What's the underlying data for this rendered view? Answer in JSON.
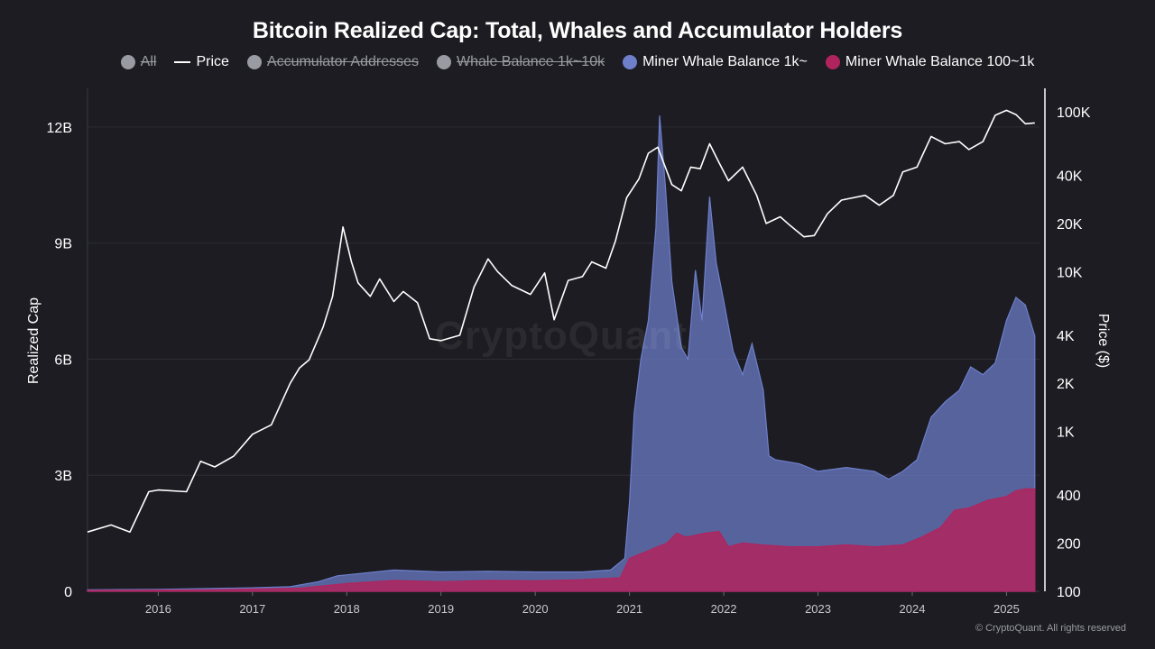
{
  "chart_data": {
    "type": "area",
    "title": "Bitcoin Realized Cap: Total, Whales and Accumulator Holders",
    "ylabel": "Realized Cap",
    "y2label": "Price ($)",
    "legend": [
      {
        "name": "All",
        "marker": "dot",
        "color": "#9a9aa2",
        "disabled": true
      },
      {
        "name": "Price",
        "marker": "line",
        "color": "#ffffff",
        "disabled": false
      },
      {
        "name": "Accumulator Addresses",
        "marker": "dot",
        "color": "#9a9aa2",
        "disabled": true
      },
      {
        "name": "Whale Balance 1k~10k",
        "marker": "dot",
        "color": "#9a9aa2",
        "disabled": true
      },
      {
        "name": "Miner Whale Balance 1k~",
        "marker": "dot",
        "color": "#6e7fcc",
        "disabled": false
      },
      {
        "name": "Miner Whale Balance 100~1k",
        "marker": "dot",
        "color": "#b0245e",
        "disabled": false
      }
    ],
    "xlim": [
      2015.25,
      2025.35
    ],
    "x_ticks": [
      2016,
      2017,
      2018,
      2019,
      2020,
      2021,
      2022,
      2023,
      2024,
      2025
    ],
    "ylim": [
      0,
      13000000000
    ],
    "y_ticks": [
      {
        "value": 0,
        "label": "0"
      },
      {
        "value": 3000000000,
        "label": "3B"
      },
      {
        "value": 6000000000,
        "label": "6B"
      },
      {
        "value": 9000000000,
        "label": "9B"
      },
      {
        "value": 12000000000,
        "label": "12B"
      }
    ],
    "y2_scale": "log",
    "y2lim": [
      100,
      140000
    ],
    "y2_ticks": [
      {
        "value": 100,
        "label": "100"
      },
      {
        "value": 200,
        "label": "200"
      },
      {
        "value": 400,
        "label": "400"
      },
      {
        "value": 1000,
        "label": "1K"
      },
      {
        "value": 2000,
        "label": "2K"
      },
      {
        "value": 4000,
        "label": "4K"
      },
      {
        "value": 10000,
        "label": "10K"
      },
      {
        "value": 20000,
        "label": "20K"
      },
      {
        "value": 40000,
        "label": "40K"
      },
      {
        "value": 100000,
        "label": "100K"
      }
    ],
    "grid": true,
    "series": [
      {
        "name": "Miner Whale Balance 1k~",
        "type": "area",
        "axis": "left",
        "color": "#6e7fcc",
        "points": [
          [
            2015.25,
            40000000.0
          ],
          [
            2016.0,
            50000000.0
          ],
          [
            2016.5,
            70000000.0
          ],
          [
            2017.0,
            90000000.0
          ],
          [
            2017.4,
            120000000.0
          ],
          [
            2017.7,
            250000000.0
          ],
          [
            2017.9,
            400000000.0
          ],
          [
            2018.1,
            450000000.0
          ],
          [
            2018.5,
            550000000.0
          ],
          [
            2019.0,
            500000000.0
          ],
          [
            2019.5,
            520000000.0
          ],
          [
            2020.0,
            500000000.0
          ],
          [
            2020.5,
            500000000.0
          ],
          [
            2020.8,
            550000000.0
          ],
          [
            2020.95,
            850000000.0
          ],
          [
            2021.0,
            2300000000.0
          ],
          [
            2021.05,
            4600000000.0
          ],
          [
            2021.12,
            6000000000.0
          ],
          [
            2021.2,
            7000000000.0
          ],
          [
            2021.28,
            9400000000.0
          ],
          [
            2021.32,
            12300000000.0
          ],
          [
            2021.38,
            10500000000.0
          ],
          [
            2021.45,
            8000000000.0
          ],
          [
            2021.55,
            6300000000.0
          ],
          [
            2021.62,
            6000000000.0
          ],
          [
            2021.7,
            8300000000.0
          ],
          [
            2021.77,
            7000000000.0
          ],
          [
            2021.85,
            10200000000.0
          ],
          [
            2021.92,
            8500000000.0
          ],
          [
            2022.0,
            7500000000.0
          ],
          [
            2022.1,
            6200000000.0
          ],
          [
            2022.2,
            5600000000.0
          ],
          [
            2022.3,
            6400000000.0
          ],
          [
            2022.42,
            5200000000.0
          ],
          [
            2022.48,
            3500000000.0
          ],
          [
            2022.55,
            3400000000.0
          ],
          [
            2022.8,
            3300000000.0
          ],
          [
            2023.0,
            3100000000.0
          ],
          [
            2023.3,
            3200000000.0
          ],
          [
            2023.6,
            3100000000.0
          ],
          [
            2023.75,
            2900000000.0
          ],
          [
            2023.9,
            3100000000.0
          ],
          [
            2024.05,
            3400000000.0
          ],
          [
            2024.2,
            4500000000.0
          ],
          [
            2024.35,
            4900000000.0
          ],
          [
            2024.5,
            5200000000.0
          ],
          [
            2024.62,
            5800000000.0
          ],
          [
            2024.75,
            5600000000.0
          ],
          [
            2024.88,
            5900000000.0
          ],
          [
            2025.0,
            7000000000.0
          ],
          [
            2025.1,
            7600000000.0
          ],
          [
            2025.2,
            7400000000.0
          ],
          [
            2025.3,
            6600000000.0
          ]
        ]
      },
      {
        "name": "Miner Whale Balance 100~1k",
        "type": "area",
        "axis": "left",
        "color": "#b0245e",
        "points": [
          [
            2015.25,
            20000000.0
          ],
          [
            2016.5,
            40000000.0
          ],
          [
            2017.5,
            80000000.0
          ],
          [
            2018.0,
            200000000.0
          ],
          [
            2018.5,
            280000000.0
          ],
          [
            2019.0,
            250000000.0
          ],
          [
            2019.5,
            280000000.0
          ],
          [
            2020.0,
            270000000.0
          ],
          [
            2020.5,
            300000000.0
          ],
          [
            2020.9,
            350000000.0
          ],
          [
            2021.0,
            850000000.0
          ],
          [
            2021.2,
            1050000000.0
          ],
          [
            2021.4,
            1250000000.0
          ],
          [
            2021.5,
            1500000000.0
          ],
          [
            2021.6,
            1400000000.0
          ],
          [
            2021.8,
            1500000000.0
          ],
          [
            2021.95,
            1550000000.0
          ],
          [
            2022.05,
            1150000000.0
          ],
          [
            2022.2,
            1250000000.0
          ],
          [
            2022.4,
            1200000000.0
          ],
          [
            2022.7,
            1150000000.0
          ],
          [
            2023.0,
            1150000000.0
          ],
          [
            2023.3,
            1200000000.0
          ],
          [
            2023.6,
            1150000000.0
          ],
          [
            2023.9,
            1200000000.0
          ],
          [
            2024.1,
            1400000000.0
          ],
          [
            2024.3,
            1650000000.0
          ],
          [
            2024.45,
            2100000000.0
          ],
          [
            2024.6,
            2150000000.0
          ],
          [
            2024.8,
            2350000000.0
          ],
          [
            2025.0,
            2450000000.0
          ],
          [
            2025.1,
            2600000000.0
          ],
          [
            2025.2,
            2650000000.0
          ],
          [
            2025.3,
            2650000000.0
          ]
        ]
      },
      {
        "name": "Price",
        "type": "line",
        "axis": "right",
        "color": "#ffffff",
        "points": [
          [
            2015.25,
            235
          ],
          [
            2015.5,
            260
          ],
          [
            2015.7,
            235
          ],
          [
            2015.9,
            420
          ],
          [
            2016.0,
            430
          ],
          [
            2016.3,
            420
          ],
          [
            2016.45,
            650
          ],
          [
            2016.6,
            600
          ],
          [
            2016.8,
            700
          ],
          [
            2017.0,
            960
          ],
          [
            2017.2,
            1100
          ],
          [
            2017.4,
            2000
          ],
          [
            2017.5,
            2500
          ],
          [
            2017.6,
            2800
          ],
          [
            2017.75,
            4500
          ],
          [
            2017.85,
            7000
          ],
          [
            2017.96,
            19000
          ],
          [
            2018.05,
            11500
          ],
          [
            2018.12,
            8500
          ],
          [
            2018.25,
            7000
          ],
          [
            2018.35,
            9000
          ],
          [
            2018.5,
            6500
          ],
          [
            2018.6,
            7500
          ],
          [
            2018.75,
            6400
          ],
          [
            2018.88,
            3800
          ],
          [
            2019.0,
            3700
          ],
          [
            2019.2,
            4000
          ],
          [
            2019.35,
            8000
          ],
          [
            2019.5,
            12000
          ],
          [
            2019.6,
            10000
          ],
          [
            2019.75,
            8200
          ],
          [
            2019.95,
            7200
          ],
          [
            2020.1,
            9800
          ],
          [
            2020.2,
            5000
          ],
          [
            2020.35,
            8800
          ],
          [
            2020.5,
            9300
          ],
          [
            2020.6,
            11500
          ],
          [
            2020.75,
            10500
          ],
          [
            2020.85,
            15500
          ],
          [
            2020.97,
            29000
          ],
          [
            2021.1,
            38000
          ],
          [
            2021.2,
            55000
          ],
          [
            2021.3,
            60000
          ],
          [
            2021.38,
            45000
          ],
          [
            2021.45,
            35000
          ],
          [
            2021.55,
            32000
          ],
          [
            2021.65,
            45000
          ],
          [
            2021.75,
            44000
          ],
          [
            2021.85,
            63000
          ],
          [
            2021.95,
            48000
          ],
          [
            2022.05,
            37000
          ],
          [
            2022.2,
            45000
          ],
          [
            2022.35,
            30000
          ],
          [
            2022.45,
            20000
          ],
          [
            2022.6,
            22000
          ],
          [
            2022.7,
            19500
          ],
          [
            2022.85,
            16500
          ],
          [
            2022.96,
            16800
          ],
          [
            2023.1,
            23000
          ],
          [
            2023.25,
            28000
          ],
          [
            2023.5,
            30000
          ],
          [
            2023.65,
            26000
          ],
          [
            2023.8,
            30000
          ],
          [
            2023.9,
            42000
          ],
          [
            2024.05,
            45000
          ],
          [
            2024.2,
            70000
          ],
          [
            2024.35,
            63000
          ],
          [
            2024.5,
            65000
          ],
          [
            2024.6,
            58000
          ],
          [
            2024.75,
            65000
          ],
          [
            2024.88,
            95000
          ],
          [
            2025.0,
            102000
          ],
          [
            2025.1,
            96000
          ],
          [
            2025.2,
            84000
          ],
          [
            2025.3,
            85000
          ]
        ]
      }
    ]
  },
  "watermark": "CryptoQuant",
  "copyright": "© CryptoQuant. All rights reserved"
}
